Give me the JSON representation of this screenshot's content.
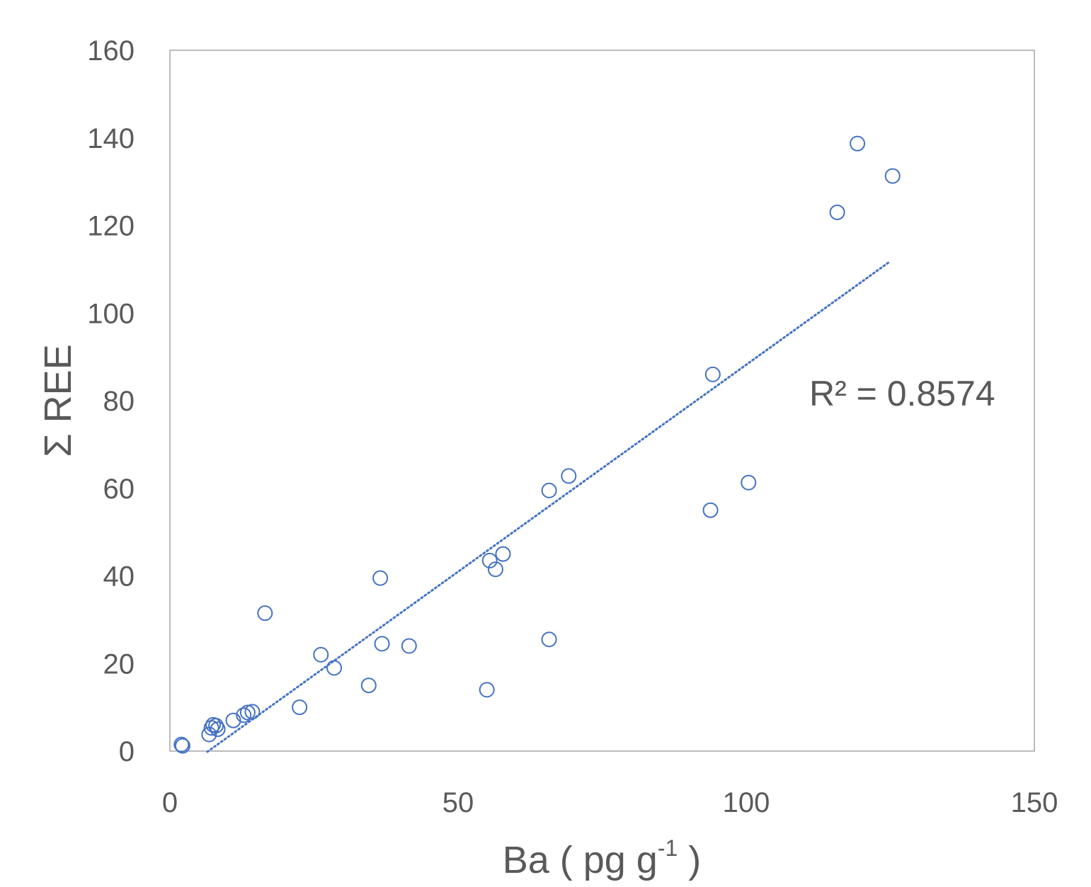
{
  "chart_data": {
    "type": "scatter",
    "title": "",
    "xlabel_main": "Ba ( pg g",
    "xlabel_sup": "-1",
    "xlabel_end": " )",
    "ylabel": "Σ REE",
    "xlim": [
      0,
      150
    ],
    "ylim": [
      0,
      160
    ],
    "x_ticks": [
      "0",
      "50",
      "100",
      "150"
    ],
    "y_ticks": [
      "0",
      "20",
      "40",
      "60",
      "80",
      "100",
      "120",
      "140",
      "160"
    ],
    "grid": false,
    "legend": "none",
    "marker_color": "#4472C4",
    "trendline_color": "#4472C4",
    "annotation": "R² = 0.8574",
    "series": [
      {
        "points": [
          [
            2,
            1.5
          ],
          [
            2.2,
            1.2
          ],
          [
            6.8,
            3.8
          ],
          [
            7.2,
            5.3
          ],
          [
            7.5,
            6.0
          ],
          [
            8.0,
            5.8
          ],
          [
            8.3,
            5.0
          ],
          [
            11,
            7.0
          ],
          [
            12.8,
            8.2
          ],
          [
            13.5,
            8.8
          ],
          [
            14.3,
            9.0
          ],
          [
            16.5,
            31.5
          ],
          [
            22.5,
            10.0
          ],
          [
            26.2,
            22.0
          ],
          [
            28.5,
            19.0
          ],
          [
            34.5,
            15.0
          ],
          [
            36.5,
            39.5
          ],
          [
            36.8,
            24.5
          ],
          [
            41.5,
            24.0
          ],
          [
            55,
            14.0
          ],
          [
            55.5,
            43.5
          ],
          [
            56.5,
            41.5
          ],
          [
            57.8,
            45.0
          ],
          [
            65.8,
            25.5
          ],
          [
            65.8,
            59.5
          ],
          [
            69.2,
            62.8
          ],
          [
            93.8,
            55.0
          ],
          [
            94.2,
            86.0
          ],
          [
            100.4,
            61.3
          ],
          [
            115.8,
            123.0
          ],
          [
            119.3,
            138.7
          ],
          [
            125.4,
            131.3
          ]
        ]
      }
    ],
    "trendline": {
      "x_start": 6.5,
      "x_end": 124.8,
      "slope": 0.945,
      "intercept": -6.3
    }
  }
}
